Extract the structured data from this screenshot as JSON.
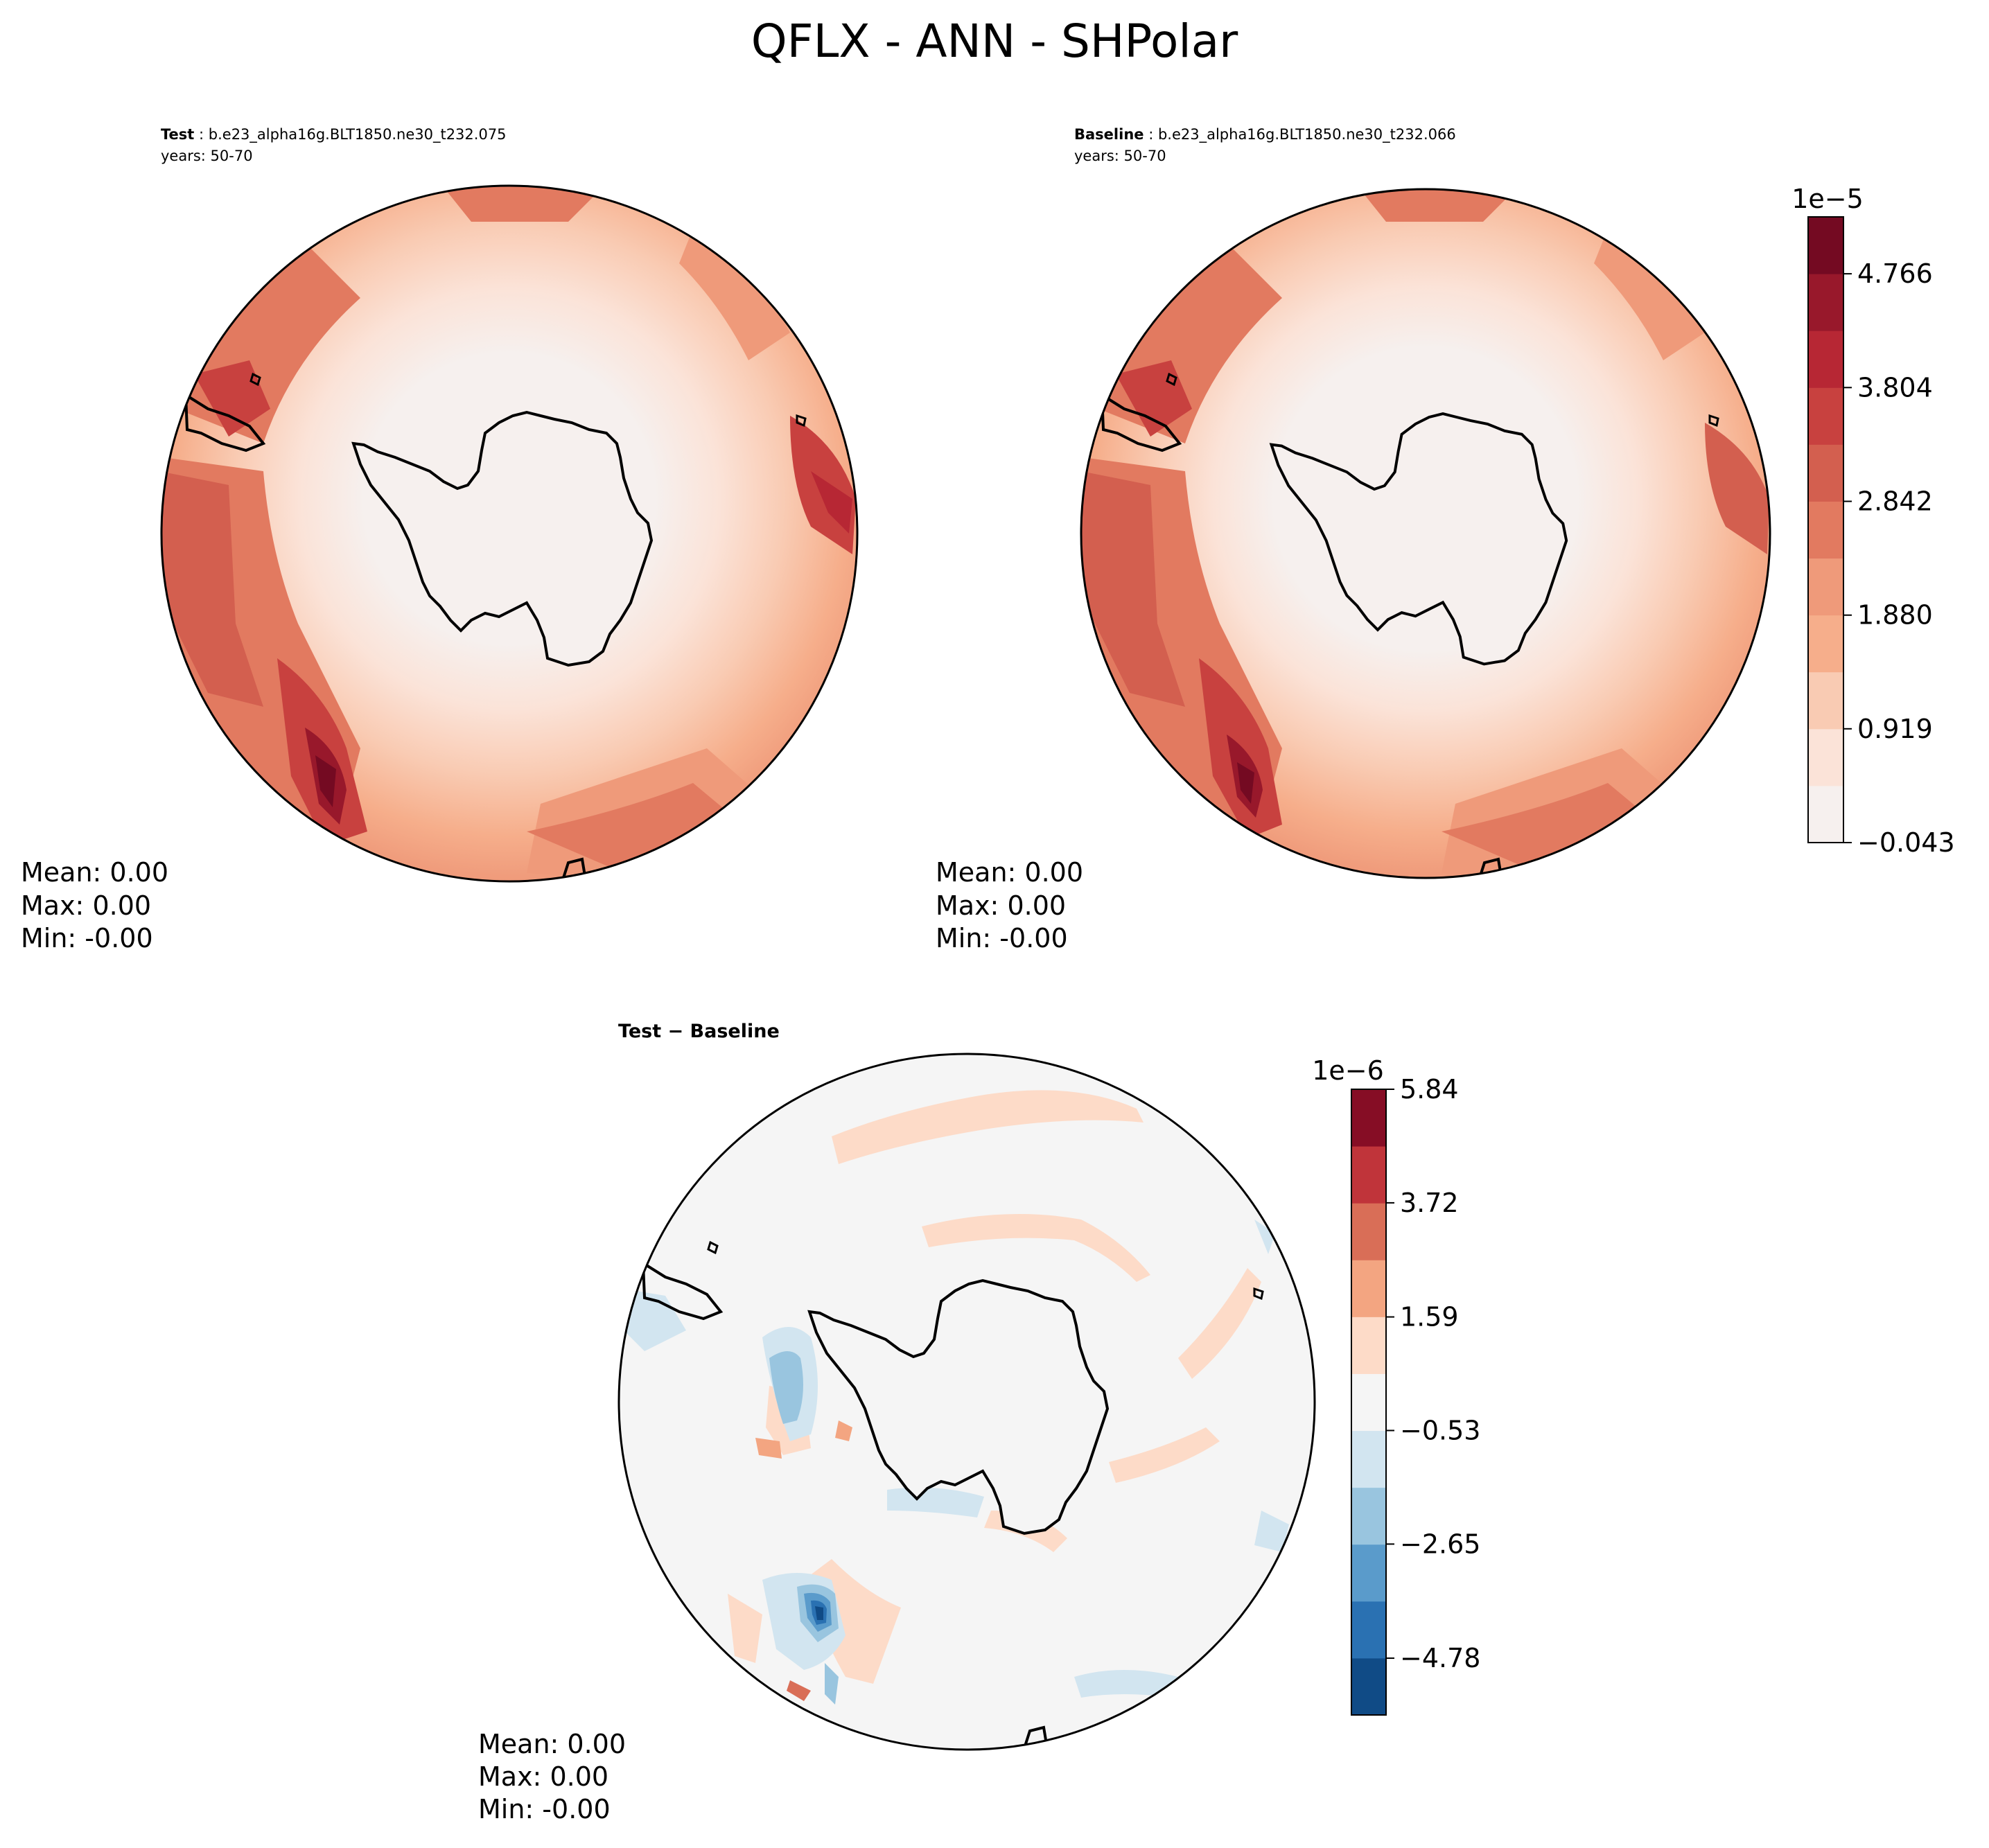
{
  "figure": {
    "title": "QFLX - ANN - SHPolar"
  },
  "panels": {
    "test": {
      "label": "Test",
      "case": "b.e23_alpha16g.BLT1850.ne30_t232.075",
      "years": "years: 50-70",
      "stats": {
        "mean": "Mean:  0.00",
        "max": "Max:  0.00",
        "min": "Min: -0.00"
      }
    },
    "baseline": {
      "label": "Baseline",
      "case": "b.e23_alpha16g.BLT1850.ne30_t232.066",
      "years": "years: 50-70",
      "stats": {
        "mean": "Mean:  0.00",
        "max": "Max:  0.00",
        "min": "Min: -0.00"
      }
    },
    "diff": {
      "label": "Test − Baseline",
      "stats": {
        "mean": "Mean:  0.00",
        "max": "Max:  0.00",
        "min": "Min: -0.00"
      }
    }
  },
  "colorbars": {
    "main": {
      "exponent": "1e−5",
      "ticks": [
        "4.766",
        "3.804",
        "2.842",
        "1.880",
        "0.919",
        "−0.043"
      ],
      "tick_values": [
        4.766,
        3.804,
        2.842,
        1.88,
        0.919,
        -0.043
      ],
      "range": [
        -0.043,
        5.247
      ],
      "colors": [
        "#f6f0ee",
        "#fbe3d8",
        "#f9cbb3",
        "#f6ae8b",
        "#ef9a7a",
        "#e27a60",
        "#d35f4f",
        "#c8413f",
        "#b72734",
        "#98182b",
        "#740a22"
      ]
    },
    "diff": {
      "exponent": "1e−6",
      "ticks": [
        "5.84",
        "3.72",
        "1.59",
        "−0.53",
        "−2.65",
        "−4.78"
      ],
      "tick_values": [
        5.84,
        3.72,
        1.59,
        -0.53,
        -2.65,
        -4.78
      ],
      "range": [
        -5.84,
        5.84
      ],
      "colors": [
        "#104b86",
        "#2a71b2",
        "#5a9bcb",
        "#99c5df",
        "#d2e5f0",
        "#f5f5f5",
        "#fddbc8",
        "#f3a581",
        "#d96e57",
        "#c0343a",
        "#860d25"
      ]
    }
  }
}
